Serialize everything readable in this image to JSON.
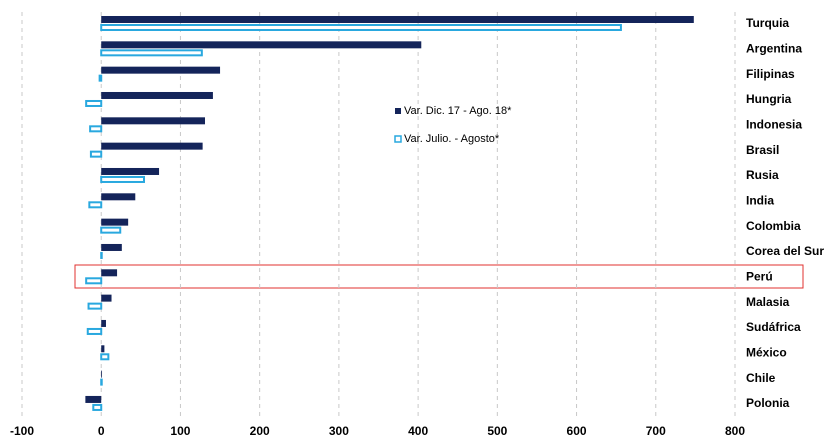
{
  "chart_data": {
    "type": "bar",
    "orientation": "horizontal",
    "categories": [
      "Turquia",
      "Argentina",
      "Filipinas",
      "Hungria",
      "Indonesia",
      "Brasil",
      "Rusia",
      "India",
      "Colombia",
      "Corea del Sur",
      "Perú",
      "Malasia",
      "Sudáfrica",
      "México",
      "Chile",
      "Polonia"
    ],
    "series": [
      {
        "name": "Var. Dic. 17 - Ago. 18*",
        "color": "#14245a",
        "style": "filled",
        "values": [
          748,
          404,
          150,
          141,
          131,
          128,
          73,
          43,
          34,
          26,
          20,
          13,
          6,
          4,
          1,
          -20
        ]
      },
      {
        "name": "Var. Julio. - Agosto*",
        "color": "#29a8df",
        "style": "outline",
        "values": [
          656,
          127,
          -2,
          -19,
          -14,
          -13,
          54,
          -15,
          24,
          0,
          -19,
          -16,
          -17,
          9,
          0,
          -10
        ]
      }
    ],
    "xlim": [
      -100,
      800
    ],
    "xticks": [
      -100,
      0,
      100,
      200,
      300,
      400,
      500,
      600,
      700,
      800
    ],
    "grid": true
  }
}
